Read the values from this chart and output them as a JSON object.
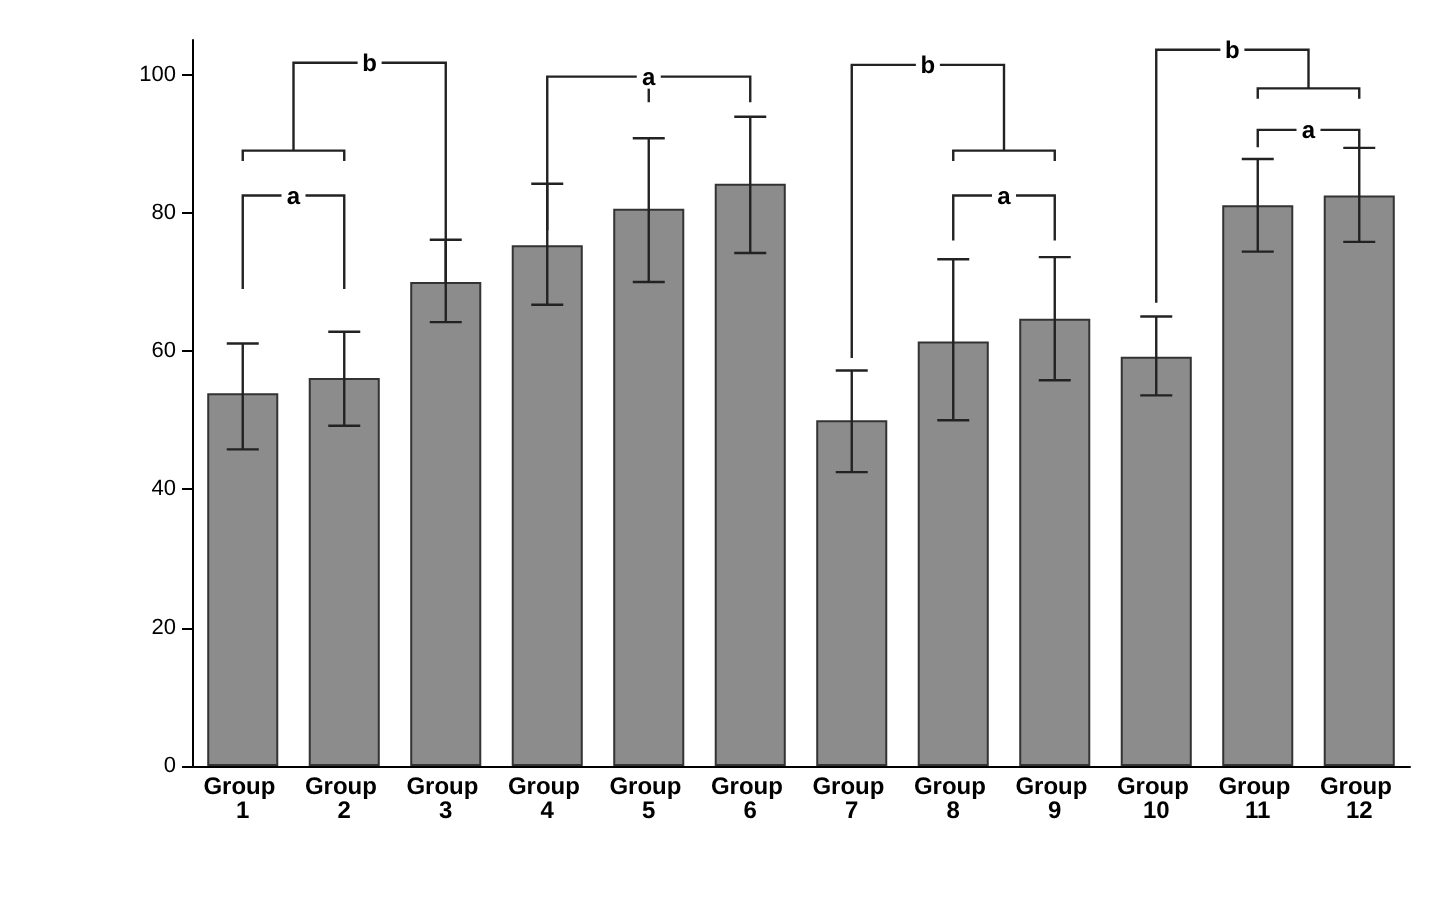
{
  "chart_data": {
    "type": "bar",
    "categories": [
      "Group 1",
      "Group 2",
      "Group 3",
      "Group 4",
      "Group 5",
      "Group 6",
      "Group 7",
      "Group 8",
      "Group 9",
      "Group 10",
      "Group 11",
      "Group 12"
    ],
    "values": [
      53.9,
      56.1,
      70,
      75.3,
      80.6,
      84.2,
      50,
      61.4,
      64.7,
      59.2,
      81.1,
      82.5
    ],
    "errors": [
      [
        45.8,
        61.1
      ],
      [
        49.2,
        62.8
      ],
      [
        64.2,
        76.1
      ],
      [
        66.7,
        84.2
      ],
      [
        70,
        90.8
      ],
      [
        74.2,
        93.9
      ],
      [
        42.5,
        57.2
      ],
      [
        50,
        73.3
      ],
      [
        55.8,
        73.6
      ],
      [
        53.6,
        65
      ],
      [
        74.4,
        87.8
      ],
      [
        75.8,
        89.4
      ]
    ],
    "color": "#8c8c8c",
    "ylim": [
      0,
      105
    ],
    "yticks": [
      0,
      20,
      40,
      60,
      80,
      100
    ],
    "annotations": [
      {
        "text": "a",
        "y": 82.5
      },
      {
        "text": "b",
        "y": 101.7
      },
      {
        "text": "a",
        "y": 99.7
      },
      {
        "text": "b",
        "y": 101.4
      },
      {
        "text": "a",
        "y": 82.5
      },
      {
        "text": "b",
        "y": 103.6
      },
      {
        "text": "a",
        "y": 92
      }
    ],
    "grid": false
  }
}
